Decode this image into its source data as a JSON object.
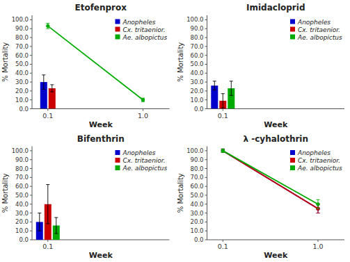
{
  "chart_data": [
    {
      "type": "bar",
      "title": "Etofenprox",
      "xlabel": "Week",
      "ylabel": "% Mortality",
      "xlim": [
        -0.05,
        1.25
      ],
      "xticks": [
        0.1,
        {
          "value": 1.0,
          "label": "1.0"
        }
      ],
      "ylim": [
        0.0,
        105.0
      ],
      "yticks": [
        {
          "value": 0.0,
          "label": "0.0"
        },
        {
          "value": 10.0,
          "label": "10.0"
        },
        {
          "value": 20.0,
          "label": "20.0"
        },
        {
          "value": 30.0,
          "label": "30.0"
        },
        {
          "value": 40.0,
          "label": "40.0"
        },
        {
          "value": 50.0,
          "label": "50.0"
        },
        {
          "value": 60.0,
          "label": "60.0"
        },
        {
          "value": 70.0,
          "label": "70.0"
        },
        {
          "value": 80.0,
          "label": "80.0"
        },
        {
          "value": 90.0,
          "label": "90.0"
        },
        {
          "value": 100.0,
          "label": "100.0"
        }
      ],
      "grid": false,
      "legend": "upper right",
      "series": [
        {
          "name": "Anopheles",
          "type": "bar",
          "color": "#0000cc",
          "x": [
            0.1
          ],
          "values": [
            30.0
          ],
          "errors": [
            8.0
          ]
        },
        {
          "name": "Cx. tritaenior.",
          "type": "bar",
          "color": "#cc0000",
          "x": [
            0.1
          ],
          "values": [
            23.0
          ],
          "errors": [
            4.0
          ]
        },
        {
          "name": "Ae. albopictus",
          "type": "line",
          "marker": "circle",
          "color": "#00aa00",
          "x": [
            0.1,
            1.0
          ],
          "values": [
            93.0,
            10.0
          ],
          "errors": [
            3.0,
            2.0
          ]
        }
      ]
    },
    {
      "type": "bar",
      "title": "Imidacloprid",
      "xlabel": "Week",
      "ylabel": "% Mortality",
      "xlim": [
        -0.05,
        1.25
      ],
      "xticks": [
        0.1
      ],
      "ylim": [
        0.0,
        105.0
      ],
      "yticks": [
        {
          "value": 0.0,
          "label": "0.0"
        },
        {
          "value": 10.0,
          "label": "10.0"
        },
        {
          "value": 20.0,
          "label": "20.0"
        },
        {
          "value": 30.0,
          "label": "30.0"
        },
        {
          "value": 40.0,
          "label": "40.0"
        },
        {
          "value": 50.0,
          "label": "50.0"
        },
        {
          "value": 60.0,
          "label": "60.0"
        },
        {
          "value": 70.0,
          "label": "70.0"
        },
        {
          "value": 80.0,
          "label": "80.0"
        },
        {
          "value": 90.0,
          "label": "90.0"
        },
        {
          "value": 100.0,
          "label": "100.0"
        }
      ],
      "grid": false,
      "legend": "upper right",
      "series": [
        {
          "name": "Anopheles",
          "type": "bar",
          "color": "#0000cc",
          "x": [
            0.1
          ],
          "values": [
            26.0
          ],
          "errors": [
            5.0
          ]
        },
        {
          "name": "Cx. tritaenior.",
          "type": "bar",
          "color": "#cc0000",
          "x": [
            0.1
          ],
          "values": [
            9.0
          ],
          "errors": [
            8.0
          ]
        },
        {
          "name": "Ae. albopictus",
          "type": "bar",
          "color": "#00aa00",
          "x": [
            0.1
          ],
          "values": [
            23.0
          ],
          "errors": [
            8.0
          ]
        }
      ]
    },
    {
      "type": "bar",
      "title": "Bifenthrin",
      "xlabel": "Week",
      "ylabel": "% Mortality",
      "xlim": [
        -0.05,
        1.25
      ],
      "xticks": [
        0.1
      ],
      "ylim": [
        0.0,
        105.0
      ],
      "yticks": [
        {
          "value": 0.0,
          "label": "0.0"
        },
        {
          "value": 10.0,
          "label": "10.0"
        },
        {
          "value": 20.0,
          "label": "20.0"
        },
        {
          "value": 30.0,
          "label": "30.0"
        },
        {
          "value": 40.0,
          "label": "40.0"
        },
        {
          "value": 50.0,
          "label": "50.0"
        },
        {
          "value": 60.0,
          "label": "60.0"
        },
        {
          "value": 70.0,
          "label": "70.0"
        },
        {
          "value": 80.0,
          "label": "80.0"
        },
        {
          "value": 90.0,
          "label": "90.0"
        },
        {
          "value": 100.0,
          "label": "100.0"
        }
      ],
      "grid": false,
      "legend": "upper right",
      "series": [
        {
          "name": "Anopheles",
          "type": "bar",
          "color": "#0000cc",
          "x": [
            0.1
          ],
          "values": [
            20.0
          ],
          "errors": [
            10.0
          ]
        },
        {
          "name": "Cx. tritaenior.",
          "type": "bar",
          "color": "#cc0000",
          "x": [
            0.1
          ],
          "values": [
            40.0
          ],
          "errors": [
            22.0
          ]
        },
        {
          "name": "Ae. albopictus",
          "type": "bar",
          "color": "#00aa00",
          "x": [
            0.1
          ],
          "values": [
            16.0
          ],
          "errors": [
            9.0
          ]
        }
      ]
    },
    {
      "type": "line",
      "title": "λ -cyhalothrin",
      "xlabel": "Week",
      "ylabel": "% Mortality",
      "xlim": [
        -0.05,
        1.25
      ],
      "xticks": [
        0.1,
        {
          "value": 1.0,
          "label": "1.0"
        }
      ],
      "ylim": [
        0.0,
        105.0
      ],
      "yticks": [
        {
          "value": 0.0,
          "label": "0.0"
        },
        {
          "value": 10.0,
          "label": "10.0"
        },
        {
          "value": 20.0,
          "label": "20.0"
        },
        {
          "value": 30.0,
          "label": "30.0"
        },
        {
          "value": 40.0,
          "label": "40.0"
        },
        {
          "value": 50.0,
          "label": "50.0"
        },
        {
          "value": 60.0,
          "label": "60.0"
        },
        {
          "value": 70.0,
          "label": "70.0"
        },
        {
          "value": 80.0,
          "label": "80.0"
        },
        {
          "value": 90.0,
          "label": "90.0"
        },
        {
          "value": 100.0,
          "label": "100.0"
        }
      ],
      "grid": false,
      "legend": "upper right",
      "series": [
        {
          "name": "Anopheles",
          "type": "line",
          "marker": "circle",
          "color": "#0000cc",
          "x": [
            0.1,
            1.0
          ],
          "values": [
            100.0,
            35.0
          ],
          "errors": [
            2.0,
            5.0
          ]
        },
        {
          "name": "Cx. tritaenior.",
          "type": "line",
          "marker": "circle",
          "color": "#cc0000",
          "x": [
            0.1,
            1.0
          ],
          "values": [
            100.0,
            35.0
          ],
          "errors": [
            2.0,
            5.0
          ]
        },
        {
          "name": "Ae. albopictus",
          "type": "line",
          "marker": "circle",
          "color": "#00aa00",
          "x": [
            0.1,
            1.0
          ],
          "values": [
            100.0,
            40.0
          ],
          "errors": [
            2.0,
            5.0
          ]
        }
      ]
    }
  ]
}
